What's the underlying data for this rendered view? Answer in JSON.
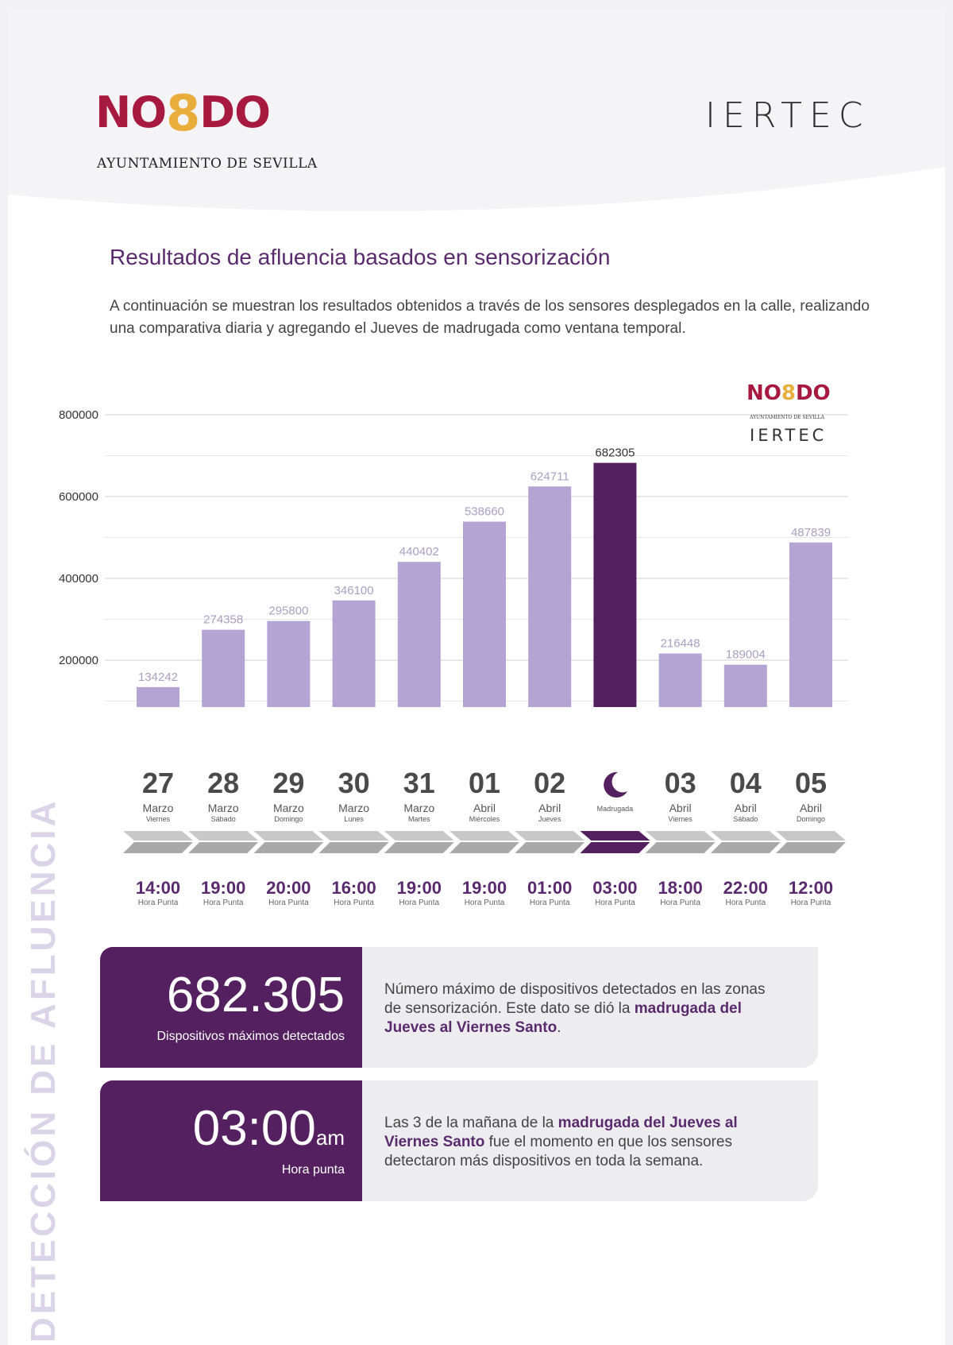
{
  "header": {
    "nodo_left": "NO",
    "nodo_eight": "8",
    "nodo_right": "DO",
    "nodo_sub": "AYUNTAMIENTO DE SEVILLA",
    "iertec": "IERTEC"
  },
  "title": "Resultados de afluencia basados en sensorización",
  "intro": "A continuación se muestran los resultados obtenidos a través de los sensores desplegados en la calle, realizando una comparativa diaria y agregando el Jueves de madrugada como ventana temporal.",
  "colors": {
    "bar": "#b3a4d4",
    "highlight": "#55205f",
    "arrow": "#a9a9a9",
    "accent": "#5a2a6e"
  },
  "chart_data": {
    "type": "bar",
    "categories": [
      "27 Marzo Viernes",
      "28 Marzo Sábado",
      "29 Marzo Domingo",
      "30 Marzo Lunes",
      "31 Marzo Martes",
      "01 Abril Miércoles",
      "02 Abril Jueves",
      "Madrugada",
      "03 Abril Viernes",
      "04 Abril Sábado",
      "05 Abril Domingo"
    ],
    "values": [
      134242,
      274358,
      295800,
      346100,
      440402,
      538660,
      624711,
      682305,
      216448,
      189004,
      487839
    ],
    "highlight_index": 7,
    "ylim": [
      0,
      800000
    ],
    "yticks": [
      "0",
      "200000",
      "400000",
      "600000",
      "800000"
    ],
    "grid": true
  },
  "days": [
    {
      "num": "27",
      "mon": "Marzo",
      "wd": "Viernes"
    },
    {
      "num": "28",
      "mon": "Marzo",
      "wd": "Sábado"
    },
    {
      "num": "29",
      "mon": "Marzo",
      "wd": "Domingo"
    },
    {
      "num": "30",
      "mon": "Marzo",
      "wd": "Lunes"
    },
    {
      "num": "31",
      "mon": "Marzo",
      "wd": "Martes"
    },
    {
      "num": "01",
      "mon": "Abril",
      "wd": "Miércoles"
    },
    {
      "num": "02",
      "mon": "Abril",
      "wd": "Jueves"
    },
    {
      "num": "",
      "mon": "",
      "wd": "Madrugada",
      "icon": "moon-icon"
    },
    {
      "num": "03",
      "mon": "Abril",
      "wd": "Viernes"
    },
    {
      "num": "04",
      "mon": "Abril",
      "wd": "Sábado"
    },
    {
      "num": "05",
      "mon": "Abril",
      "wd": "Domingo"
    }
  ],
  "peaks": [
    "14:00",
    "19:00",
    "20:00",
    "16:00",
    "19:00",
    "19:00",
    "01:00",
    "03:00",
    "18:00",
    "22:00",
    "12:00"
  ],
  "peak_label": "Hora Punta",
  "card1": {
    "value": "682.305",
    "caption": "Dispositivos máximos detectados",
    "text_1": "Número máximo de dispositivos detectados en las zonas de sensorización. Este dato se dió la ",
    "bold": "madrugada del Jueves al Viernes Santo",
    "text_2": "."
  },
  "card2": {
    "value": "03:00",
    "unit": "am",
    "caption": "Hora punta",
    "text_1": "Las 3 de la mañana de la ",
    "bold_1": "madrugada del Jueves al Viernes Santo",
    "text_2": " fue el momento en que los sensores detectaron más dispositivos en toda la semana."
  },
  "side_title": "DETECCIÓN DE AFLUENCIA"
}
